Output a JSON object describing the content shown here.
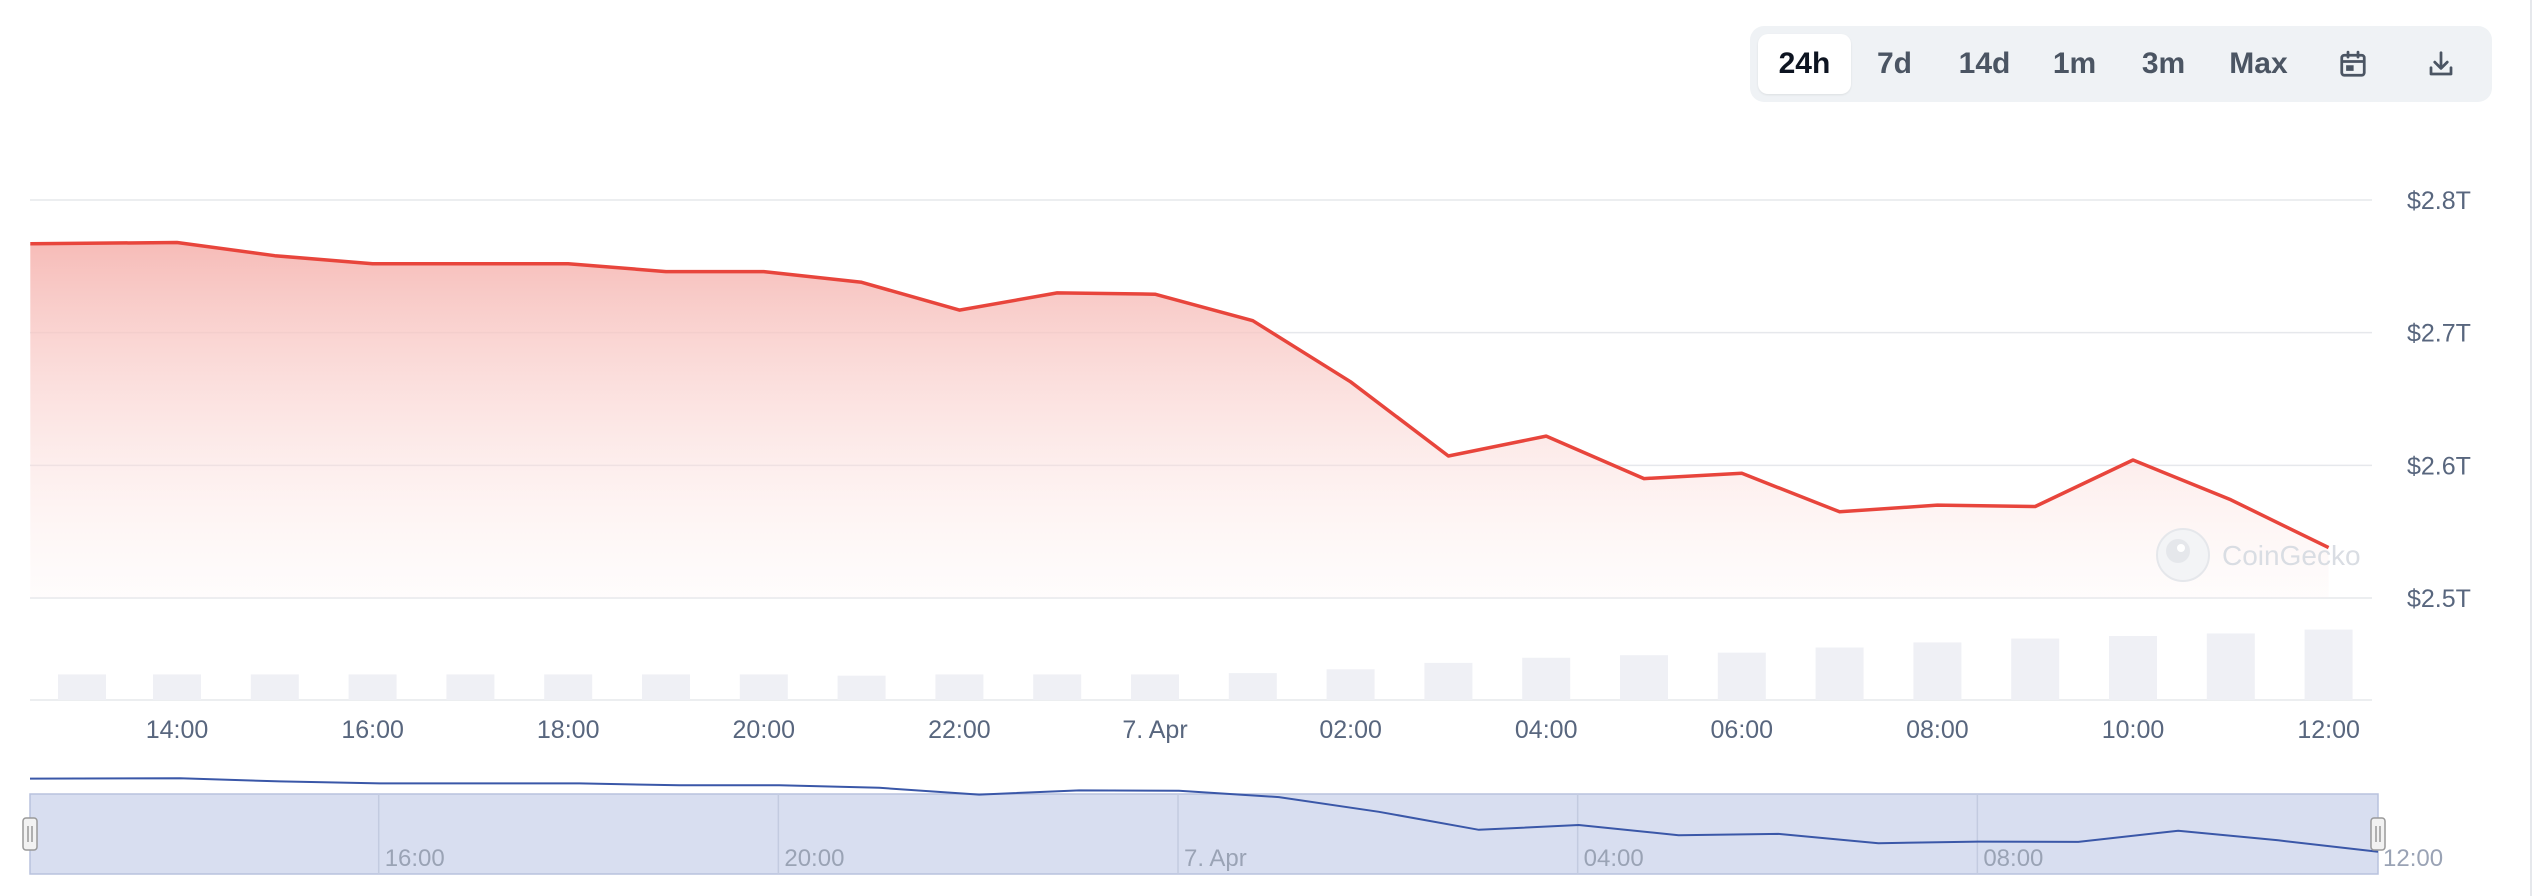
{
  "toolbar": {
    "ranges": [
      "24h",
      "7d",
      "14d",
      "1m",
      "3m",
      "Max"
    ],
    "active": "24h",
    "icons": [
      "calendar-icon",
      "download-icon"
    ]
  },
  "watermark": "CoinGecko",
  "colors": {
    "line": "#e8453c",
    "area_top": "#f6b8b4",
    "volume": "#eff0f5",
    "navigator_fill": "#d8def0",
    "navigator_line": "#3a57a8",
    "grid": "#e6e8ec",
    "axis_text": "#58667e"
  },
  "chart_data": {
    "type": "area",
    "title": "",
    "xlabel": "",
    "ylabel": "",
    "y_axis_position": "right",
    "ylim": [
      2.45,
      2.8
    ],
    "y_ticks": [
      2.5,
      2.6,
      2.7,
      2.8
    ],
    "y_tick_labels": [
      "$2.5T",
      "$2.6T",
      "$2.7T",
      "$2.8T"
    ],
    "x_ticks": [
      "14:00",
      "16:00",
      "18:00",
      "20:00",
      "22:00",
      "7. Apr",
      "02:00",
      "04:00",
      "06:00",
      "08:00",
      "10:00",
      "12:00"
    ],
    "x_tick_hours": [
      14,
      16,
      18,
      20,
      22,
      24,
      26,
      28,
      30,
      32,
      34,
      36
    ],
    "x_hours": [
      12.5,
      14,
      15,
      16,
      17,
      18,
      19,
      20,
      21,
      22,
      23,
      24,
      25,
      26,
      27,
      28,
      29,
      30,
      31,
      32,
      33,
      34,
      35,
      36
    ],
    "series": [
      {
        "values": [
          2.767,
          2.768,
          2.758,
          2.752,
          2.752,
          2.752,
          2.746,
          2.746,
          2.738,
          2.717,
          2.73,
          2.729,
          2.709,
          2.663,
          2.607,
          2.622,
          2.59,
          2.594,
          2.565,
          2.57,
          2.569,
          2.604,
          2.574,
          2.538
        ]
      }
    ],
    "volume_relative": [
      0.4,
      0.4,
      0.4,
      0.4,
      0.4,
      0.4,
      0.4,
      0.4,
      0.38,
      0.4,
      0.4,
      0.4,
      0.42,
      0.48,
      0.58,
      0.66,
      0.7,
      0.74,
      0.82,
      0.9,
      0.96,
      1.0,
      1.04,
      1.1
    ],
    "navigator": {
      "x_ticks": [
        "16:00",
        "20:00",
        "7. Apr",
        "04:00",
        "08:00",
        "12:00"
      ],
      "x_tick_hours": [
        16,
        20,
        24,
        28,
        32,
        36
      ]
    }
  }
}
